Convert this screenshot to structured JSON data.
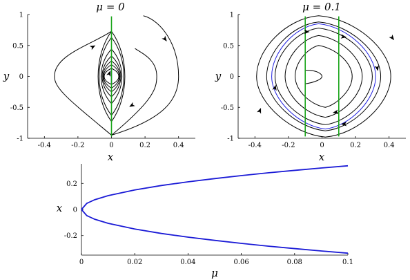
{
  "chart_data": [
    {
      "type": "line",
      "title": "μ = 0",
      "xlabel": "x",
      "ylabel": "y",
      "xlim": [
        -0.5,
        0.5
      ],
      "ylim": [
        -1,
        1
      ],
      "xticks": [
        "-0.4",
        "-0.2",
        "0",
        "0.2",
        "0.4"
      ],
      "yticks": [
        "-1",
        "-0.5",
        "0",
        "0.5",
        "1"
      ],
      "grid": false,
      "mu": 0,
      "vertical_lines_x": [
        0
      ],
      "orbit_y_intercepts": [
        0.73,
        0.63,
        0.44,
        0.33,
        0.25,
        0.19,
        0.13
      ],
      "outer_open_curve": true,
      "line_colors": {
        "orbit": "#000000",
        "nullcline": "#1aa51a"
      }
    },
    {
      "type": "line",
      "title": "μ = 0.1",
      "xlabel": "x",
      "ylabel": "y",
      "xlim": [
        -0.5,
        0.5
      ],
      "ylim": [
        -1,
        1
      ],
      "xticks": [
        "-0.4",
        "-0.2",
        "0",
        "0.2",
        "0.4"
      ],
      "yticks": [
        "-1",
        "-0.5",
        "0",
        "0.5",
        "1"
      ],
      "grid": false,
      "mu": 0.1,
      "vertical_lines_x": [
        -0.1,
        0.1
      ],
      "orbits": [
        {
          "half_width": 0.39,
          "half_height": 0.98,
          "color": "#000000"
        },
        {
          "half_width": 0.33,
          "half_height": 0.88,
          "color": "#000000"
        },
        {
          "half_width": 0.28,
          "half_height": 0.78,
          "color": "#000000"
        },
        {
          "half_width": 0.22,
          "half_height": 0.66,
          "color": "#000000"
        },
        {
          "half_width": 0.16,
          "half_height": 0.5,
          "color": "#000000"
        }
      ],
      "highlight_orbit": {
        "half_width": 0.3,
        "half_height": 0.85,
        "color": "#2020e0"
      },
      "line_colors": {
        "orbit": "#000000",
        "nullcline": "#1aa51a"
      }
    },
    {
      "type": "line",
      "title": "",
      "xlabel": "μ",
      "ylabel": "x",
      "xlim": [
        0,
        0.1
      ],
      "ylim": [
        -0.35,
        0.35
      ],
      "xticks": [
        "0",
        "0.02",
        "0.04",
        "0.06",
        "0.08",
        "0.1"
      ],
      "yticks": [
        "-0.2",
        "0",
        "0.2"
      ],
      "grid": false,
      "x": [
        0,
        0.002,
        0.005,
        0.01,
        0.02,
        0.03,
        0.04,
        0.05,
        0.06,
        0.07,
        0.08,
        0.09,
        0.1
      ],
      "series": [
        {
          "values": [
            0,
            0.047,
            0.075,
            0.106,
            0.15,
            0.184,
            0.212,
            0.237,
            0.26,
            0.281,
            0.3,
            0.318,
            0.335
          ],
          "color": "#1a1ad6"
        },
        {
          "values": [
            0,
            -0.047,
            -0.075,
            -0.106,
            -0.15,
            -0.184,
            -0.212,
            -0.237,
            -0.26,
            -0.281,
            -0.3,
            -0.318,
            -0.335
          ],
          "color": "#1a1ad6"
        }
      ]
    }
  ]
}
